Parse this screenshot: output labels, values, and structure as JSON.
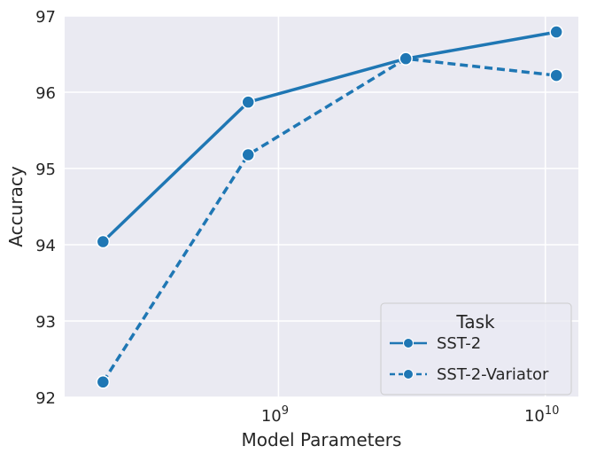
{
  "chart_data": {
    "type": "line",
    "xscale": "log",
    "xlabel": "Model Parameters",
    "ylabel": "Accuracy",
    "xlim": [
      158000000.0,
      13300000000.0
    ],
    "ylim": [
      92.0,
      97.0
    ],
    "yticks": [
      "92",
      "93",
      "94",
      "95",
      "96",
      "97"
    ],
    "xticks": [
      {
        "value": 1000000000.0,
        "base": "10",
        "exp": "9"
      },
      {
        "value": 10000000000.0,
        "base": "10",
        "exp": "10"
      }
    ],
    "x": [
      220000000.0,
      770000000.0,
      3000000000.0,
      11000000000.0
    ],
    "series": [
      {
        "name": "SST-2",
        "style": "solid",
        "values": [
          94.04,
          95.87,
          96.44,
          96.79
        ]
      },
      {
        "name": "SST-2-Variator",
        "style": "dashed",
        "values": [
          92.2,
          95.18,
          96.44,
          96.22
        ]
      }
    ],
    "legend": {
      "title": "Task",
      "position": "bottom-right"
    },
    "grid": true,
    "colors": {
      "line": "#1f77b4",
      "background": "#eaeaf2",
      "grid": "#ffffff",
      "marker_edge": "#ffffff"
    }
  }
}
